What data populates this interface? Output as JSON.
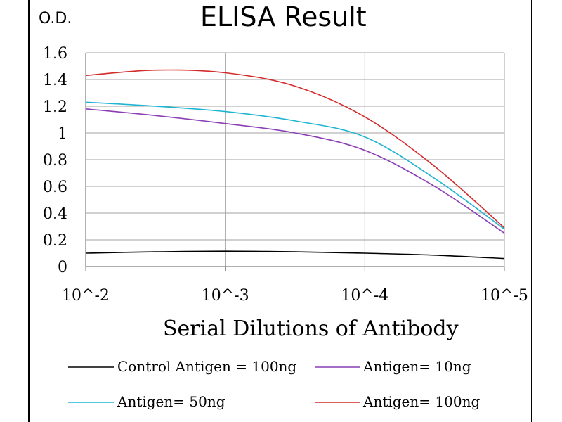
{
  "chart_data": {
    "type": "line",
    "title": "ELISA Result",
    "ylabel": "O.D.",
    "xlabel": "Serial Dilutions  of Antibody",
    "x_categories": [
      "10^-2",
      "10^-3",
      "10^-4",
      "10^-5"
    ],
    "y_ticks": [
      "0",
      "0.2",
      "0.4",
      "0.6",
      "0.8",
      "1",
      "1.2",
      "1.4",
      "1.6"
    ],
    "ylim": [
      0,
      1.6
    ],
    "grid": true,
    "legend_position": "bottom",
    "series": [
      {
        "name": "Control Antigen = 100ng",
        "color": "#000000",
        "x": [
          0,
          0.5,
          1,
          1.5,
          2,
          2.5,
          3
        ],
        "values": [
          0.1,
          0.11,
          0.115,
          0.11,
          0.1,
          0.085,
          0.06
        ]
      },
      {
        "name": "Antigen= 10ng",
        "color": "#8a3fb5",
        "x": [
          0,
          0.5,
          1,
          1.5,
          2,
          2.5,
          3
        ],
        "values": [
          1.18,
          1.13,
          1.07,
          1.0,
          0.87,
          0.6,
          0.25
        ]
      },
      {
        "name": "Antigen= 50ng",
        "color": "#1fb4d2",
        "x": [
          0,
          0.5,
          1,
          1.5,
          2,
          2.5,
          3
        ],
        "values": [
          1.23,
          1.2,
          1.16,
          1.09,
          0.97,
          0.66,
          0.28
        ]
      },
      {
        "name": "Antigen= 100ng",
        "color": "#d42a2a",
        "x": [
          0,
          0.5,
          1,
          1.5,
          2,
          2.5,
          3
        ],
        "values": [
          1.43,
          1.47,
          1.45,
          1.35,
          1.12,
          0.75,
          0.29
        ]
      }
    ]
  }
}
